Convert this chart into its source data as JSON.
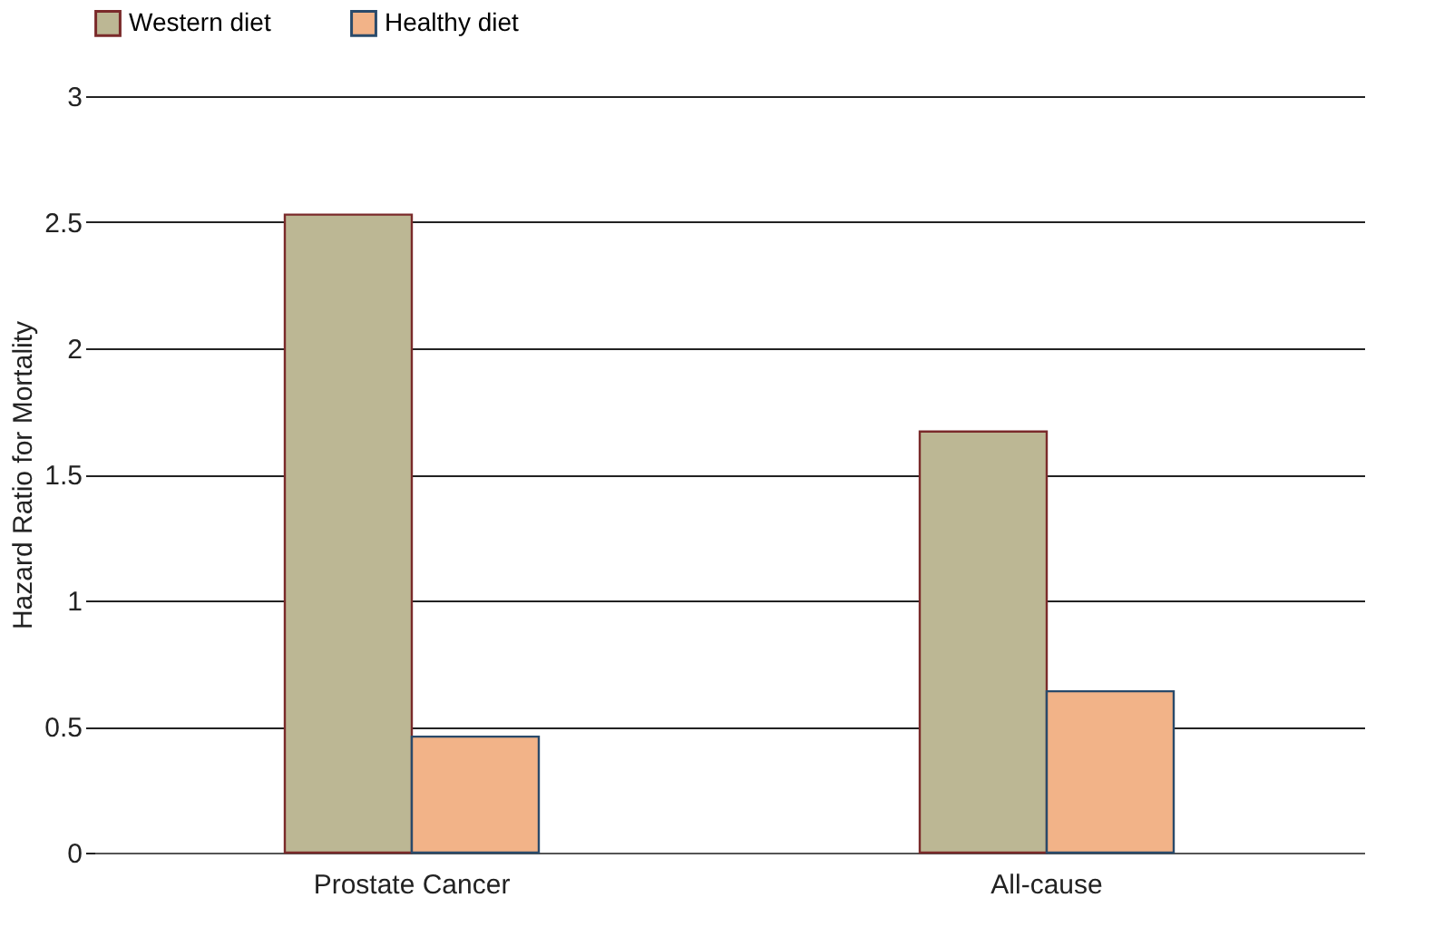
{
  "chart_data": {
    "type": "bar",
    "ylabel": "Hazard Ratio for Mortality",
    "categories": [
      "Prostate Cancer",
      "All-cause"
    ],
    "series": [
      {
        "name": "Western diet",
        "color": "#bcb794",
        "values": [
          2.53,
          1.67
        ]
      },
      {
        "name": "Healthy diet",
        "color": "#f2b388",
        "values": [
          0.46,
          0.64
        ]
      }
    ],
    "ylim": [
      0,
      3
    ],
    "yticks": [
      {
        "value": 0,
        "label": "0"
      },
      0.5,
      {
        "value": 1,
        "label": "1"
      },
      1.5,
      {
        "value": 2,
        "label": "2"
      },
      2.5,
      {
        "value": 3,
        "label": "3"
      }
    ],
    "grid": "y",
    "legend": "top"
  }
}
